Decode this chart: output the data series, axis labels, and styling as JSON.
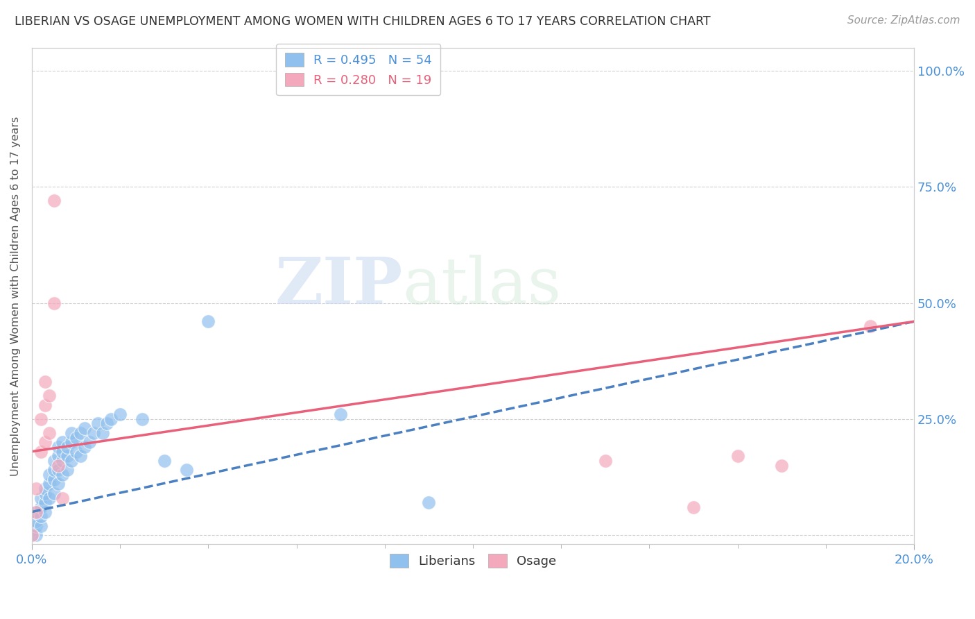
{
  "title": "LIBERIAN VS OSAGE UNEMPLOYMENT AMONG WOMEN WITH CHILDREN AGES 6 TO 17 YEARS CORRELATION CHART",
  "source": "Source: ZipAtlas.com",
  "ylabel": "Unemployment Among Women with Children Ages 6 to 17 years",
  "xlim": [
    0.0,
    0.2
  ],
  "ylim": [
    -0.02,
    1.05
  ],
  "background_color": "#ffffff",
  "grid_color": "#d0d0d0",
  "watermark_zip": "ZIP",
  "watermark_atlas": "atlas",
  "liberian_color": "#90c0ed",
  "osage_color": "#f4a8bc",
  "liberian_line_color": "#4a7fc0",
  "osage_line_color": "#e8607a",
  "liberian_scatter": [
    [
      0.0,
      0.0
    ],
    [
      0.0,
      0.01
    ],
    [
      0.001,
      0.0
    ],
    [
      0.001,
      0.02
    ],
    [
      0.001,
      0.03
    ],
    [
      0.001,
      0.05
    ],
    [
      0.002,
      0.02
    ],
    [
      0.002,
      0.04
    ],
    [
      0.002,
      0.06
    ],
    [
      0.002,
      0.08
    ],
    [
      0.003,
      0.05
    ],
    [
      0.003,
      0.07
    ],
    [
      0.003,
      0.09
    ],
    [
      0.003,
      0.1
    ],
    [
      0.004,
      0.08
    ],
    [
      0.004,
      0.11
    ],
    [
      0.004,
      0.13
    ],
    [
      0.005,
      0.09
    ],
    [
      0.005,
      0.12
    ],
    [
      0.005,
      0.14
    ],
    [
      0.005,
      0.16
    ],
    [
      0.006,
      0.11
    ],
    [
      0.006,
      0.14
    ],
    [
      0.006,
      0.17
    ],
    [
      0.006,
      0.19
    ],
    [
      0.007,
      0.13
    ],
    [
      0.007,
      0.16
    ],
    [
      0.007,
      0.18
    ],
    [
      0.007,
      0.2
    ],
    [
      0.008,
      0.14
    ],
    [
      0.008,
      0.17
    ],
    [
      0.008,
      0.19
    ],
    [
      0.009,
      0.16
    ],
    [
      0.009,
      0.2
    ],
    [
      0.009,
      0.22
    ],
    [
      0.01,
      0.18
    ],
    [
      0.01,
      0.21
    ],
    [
      0.011,
      0.17
    ],
    [
      0.011,
      0.22
    ],
    [
      0.012,
      0.19
    ],
    [
      0.012,
      0.23
    ],
    [
      0.013,
      0.2
    ],
    [
      0.014,
      0.22
    ],
    [
      0.015,
      0.24
    ],
    [
      0.016,
      0.22
    ],
    [
      0.017,
      0.24
    ],
    [
      0.018,
      0.25
    ],
    [
      0.02,
      0.26
    ],
    [
      0.025,
      0.25
    ],
    [
      0.03,
      0.16
    ],
    [
      0.035,
      0.14
    ],
    [
      0.04,
      0.46
    ],
    [
      0.07,
      0.26
    ],
    [
      0.09,
      0.07
    ]
  ],
  "osage_scatter": [
    [
      0.0,
      0.0
    ],
    [
      0.001,
      0.05
    ],
    [
      0.001,
      0.1
    ],
    [
      0.002,
      0.18
    ],
    [
      0.002,
      0.25
    ],
    [
      0.003,
      0.2
    ],
    [
      0.003,
      0.28
    ],
    [
      0.003,
      0.33
    ],
    [
      0.004,
      0.22
    ],
    [
      0.004,
      0.3
    ],
    [
      0.005,
      0.5
    ],
    [
      0.005,
      0.72
    ],
    [
      0.006,
      0.15
    ],
    [
      0.007,
      0.08
    ],
    [
      0.13,
      0.16
    ],
    [
      0.15,
      0.06
    ],
    [
      0.16,
      0.17
    ],
    [
      0.17,
      0.15
    ],
    [
      0.19,
      0.45
    ]
  ],
  "liberian_line": [
    [
      0.0,
      0.05
    ],
    [
      0.2,
      0.46
    ]
  ],
  "osage_line": [
    [
      0.0,
      0.18
    ],
    [
      0.2,
      0.46
    ]
  ]
}
